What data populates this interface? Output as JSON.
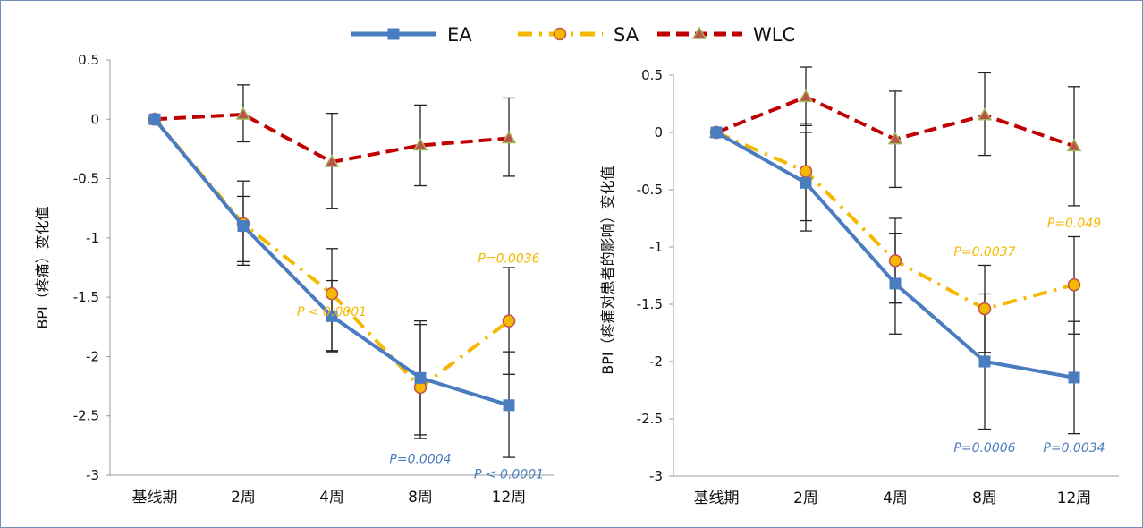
{
  "chart_data": [
    {
      "type": "line",
      "ylabel": "BPI（疼痛）变化值",
      "categories": [
        "基线期",
        "2周",
        "4周",
        "8周",
        "12周"
      ],
      "ylim": [
        -3,
        0.5
      ],
      "yticks": [
        "0.5",
        "0",
        "-0.5",
        "-1",
        "-1.5",
        "-2",
        "-2.5",
        "-3"
      ],
      "series": [
        {
          "name": "EA",
          "color": "#4a7cc0",
          "marker": "square",
          "style": "solid",
          "values": [
            0,
            -0.9,
            -1.66,
            -2.18,
            -2.41
          ],
          "err_low": [
            null,
            -1.23,
            -1.96,
            -2.66,
            -2.85
          ],
          "err_high": [
            null,
            -0.52,
            -1.36,
            -1.7,
            -1.96
          ]
        },
        {
          "name": "SA",
          "color": "#f5b800",
          "marker": "circle",
          "style": "dashdot",
          "values": [
            0,
            -0.88,
            -1.47,
            -2.26,
            -1.7
          ],
          "err_low": [
            null,
            -1.2,
            -1.95,
            -2.69,
            -2.15
          ],
          "err_high": [
            null,
            -0.65,
            -1.09,
            -1.73,
            -1.25
          ]
        },
        {
          "name": "WLC",
          "color": "#c00000",
          "marker": "triangle",
          "style": "dashed",
          "values": [
            0,
            0.04,
            -0.36,
            -0.22,
            -0.16
          ],
          "err_low": [
            null,
            -0.19,
            -0.75,
            -0.56,
            -0.48
          ],
          "err_high": [
            null,
            0.29,
            0.05,
            0.12,
            0.18
          ]
        }
      ],
      "annotations": [
        {
          "text": "P < 0.0001",
          "color": "#f5b800",
          "x": "4周",
          "y": -1.62
        },
        {
          "text": "P=0.0036",
          "color": "#f5b800",
          "x": "12周",
          "y": -1.17
        },
        {
          "text": "P=0.0004",
          "color": "#4a7cc0",
          "x": "8周",
          "y": -2.86
        },
        {
          "text": "P < 0.0001",
          "color": "#4a7cc0",
          "x": "12周",
          "y": -2.99
        }
      ]
    },
    {
      "type": "line",
      "ylabel": "BPI（疼痛对患者的影响）变化值",
      "categories": [
        "基线期",
        "2周",
        "4周",
        "8周",
        "12周"
      ],
      "ylim": [
        -3,
        0.5
      ],
      "yticks": [
        "0.5",
        "0",
        "-0.5",
        "-1",
        "-1.5",
        "-2",
        "-2.5",
        "-3"
      ],
      "series": [
        {
          "name": "EA",
          "color": "#4a7cc0",
          "marker": "square",
          "style": "solid",
          "values": [
            0,
            -0.44,
            -1.32,
            -2.0,
            -2.14
          ],
          "err_low": [
            null,
            -0.86,
            -1.76,
            -2.59,
            -2.63
          ],
          "err_high": [
            null,
            0.0,
            -0.88,
            -1.41,
            -1.65
          ]
        },
        {
          "name": "SA",
          "color": "#f5b800",
          "marker": "circle",
          "style": "dashdot",
          "values": [
            0,
            -0.34,
            -1.12,
            -1.54,
            -1.33
          ],
          "err_low": [
            null,
            -0.77,
            -1.49,
            -1.92,
            -1.76
          ],
          "err_high": [
            null,
            0.08,
            -0.75,
            -1.16,
            -0.91
          ]
        },
        {
          "name": "WLC",
          "color": "#c00000",
          "marker": "triangle",
          "style": "dashed",
          "values": [
            0,
            0.31,
            -0.06,
            0.15,
            -0.12
          ],
          "err_low": [
            null,
            0.06,
            -0.48,
            -0.2,
            -0.64
          ],
          "err_high": [
            null,
            0.57,
            0.36,
            0.52,
            0.4
          ]
        }
      ],
      "annotations": [
        {
          "text": "P=0.0037",
          "color": "#f5b800",
          "x": "8周",
          "y": -1.04
        },
        {
          "text": "P=0.049",
          "color": "#f5b800",
          "x": "12周",
          "y": -0.79
        },
        {
          "text": "P=0.0006",
          "color": "#4a7cc0",
          "x": "8周",
          "y": -2.75
        },
        {
          "text": "P=0.0034",
          "color": "#4a7cc0",
          "x": "12周",
          "y": -2.75
        }
      ]
    }
  ],
  "legend": {
    "position": "top-center",
    "items": [
      {
        "name": "EA",
        "color": "#4a7cc0",
        "marker": "square",
        "style": "solid"
      },
      {
        "name": "SA",
        "color": "#f5b800",
        "marker": "circle",
        "style": "dashdot"
      },
      {
        "name": "WLC",
        "color": "#c00000",
        "marker": "triangle",
        "style": "dashed"
      }
    ]
  }
}
